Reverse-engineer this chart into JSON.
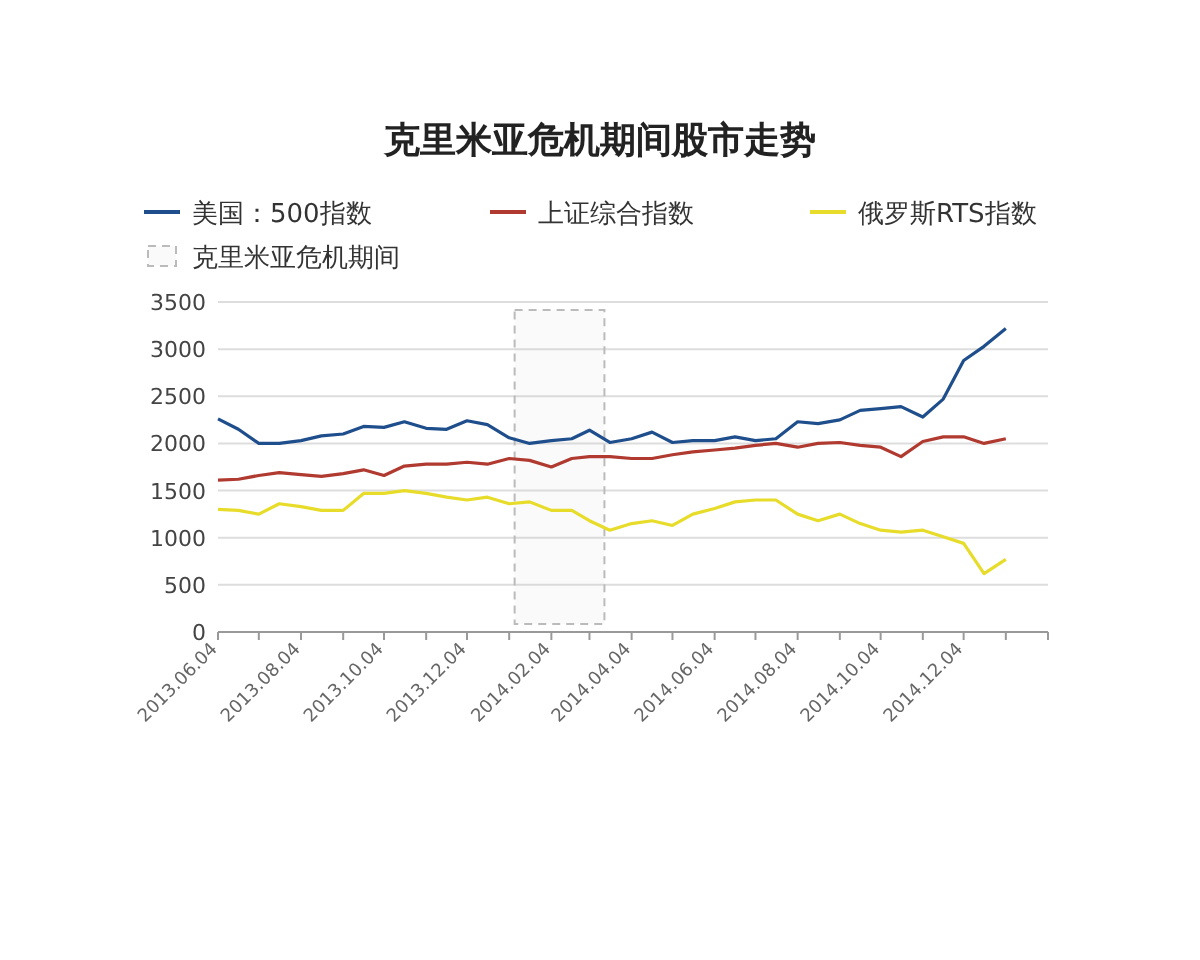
{
  "chart_data": {
    "type": "line",
    "title": "克里米亚危机期间股市走势",
    "x": [
      "2013-06-04",
      "2013-06-19",
      "2013-07-04",
      "2013-07-19",
      "2013-08-04",
      "2013-08-19",
      "2013-09-04",
      "2013-09-19",
      "2013-10-04",
      "2013-10-19",
      "2013-11-04",
      "2013-11-19",
      "2013-12-04",
      "2013-12-19",
      "2014-01-04",
      "2014-01-19",
      "2014-02-04",
      "2014-02-19",
      "2014-03-04",
      "2014-03-19",
      "2014-04-04",
      "2014-04-19",
      "2014-05-04",
      "2014-05-19",
      "2014-06-04",
      "2014-06-19",
      "2014-07-04",
      "2014-07-19",
      "2014-08-04",
      "2014-08-19",
      "2014-09-04",
      "2014-09-19",
      "2014-10-04",
      "2014-10-19",
      "2014-11-04",
      "2014-11-19",
      "2014-12-04",
      "2014-12-19",
      "2015-01-04"
    ],
    "series": [
      {
        "name": "美国：500指数",
        "color": "#1f4e8c",
        "values": [
          2260,
          2150,
          2000,
          2000,
          2030,
          2080,
          2100,
          2180,
          2170,
          2230,
          2160,
          2150,
          2240,
          2200,
          2060,
          2000,
          2030,
          2050,
          2140,
          2010,
          2050,
          2120,
          2010,
          2030,
          2030,
          2070,
          2030,
          2050,
          2230,
          2210,
          2250,
          2350,
          2370,
          2390,
          2280,
          2470,
          2880,
          3030,
          3220
        ]
      },
      {
        "name": "上证综合指数",
        "color": "#b03a30",
        "values": [
          1610,
          1620,
          1660,
          1690,
          1670,
          1650,
          1680,
          1720,
          1660,
          1760,
          1780,
          1780,
          1800,
          1780,
          1840,
          1820,
          1750,
          1840,
          1860,
          1860,
          1840,
          1840,
          1880,
          1910,
          1930,
          1950,
          1980,
          2000,
          1960,
          2000,
          2010,
          1980,
          1960,
          1860,
          2020,
          2070,
          2070,
          2000,
          2050
        ]
      },
      {
        "name": "俄罗斯RTS指数",
        "color": "#e8dc2a",
        "values": [
          1300,
          1290,
          1250,
          1360,
          1330,
          1290,
          1290,
          1470,
          1470,
          1500,
          1470,
          1430,
          1400,
          1430,
          1360,
          1380,
          1290,
          1290,
          1180,
          1080,
          1150,
          1180,
          1130,
          1250,
          1310,
          1380,
          1400,
          1400,
          1250,
          1180,
          1250,
          1150,
          1080,
          1060,
          1080,
          1010,
          940,
          620,
          770
        ]
      }
    ],
    "xlim": [
      "2013-06-04",
      "2015-02-04"
    ],
    "xticks": [
      {
        "value": "2013-06-04",
        "label": "2013.06.04"
      },
      {
        "value": "2013-07-04",
        "label": null
      },
      {
        "value": "2013-08-04",
        "label": "2013.08.04"
      },
      {
        "value": "2013-09-04",
        "label": null
      },
      {
        "value": "2013-10-04",
        "label": "2013.10.04"
      },
      {
        "value": "2013-11-04",
        "label": null
      },
      {
        "value": "2013-12-04",
        "label": "2013.12.04"
      },
      {
        "value": "2014-01-04",
        "label": null
      },
      {
        "value": "2014-02-04",
        "label": "2014.02.04"
      },
      {
        "value": "2014-03-04",
        "label": null
      },
      {
        "value": "2014-04-04",
        "label": "2014.04.04"
      },
      {
        "value": "2014-05-04",
        "label": null
      },
      {
        "value": "2014-06-04",
        "label": "2014.06.04"
      },
      {
        "value": "2014-07-04",
        "label": null
      },
      {
        "value": "2014-08-04",
        "label": "2014.08.04"
      },
      {
        "value": "2014-09-04",
        "label": null
      },
      {
        "value": "2014-10-04",
        "label": "2014.10.04"
      },
      {
        "value": "2014-11-04",
        "label": null
      },
      {
        "value": "2014-12-04",
        "label": "2014.12.04"
      },
      {
        "value": "2015-01-04",
        "label": null
      },
      {
        "value": "2015-02-04",
        "label": null
      }
    ],
    "ylim": [
      0,
      3500
    ],
    "yticks": [
      0,
      500,
      1000,
      1500,
      2000,
      2500,
      3000,
      3500
    ],
    "grid": "y",
    "legend": "top left",
    "marker": "none",
    "line_style": "solid",
    "bands": [
      {
        "axis": "x",
        "from": "2014-01-08",
        "to": "2014-03-15",
        "label": "克里米亚危机期间",
        "color": "#bbbbbb"
      }
    ]
  }
}
